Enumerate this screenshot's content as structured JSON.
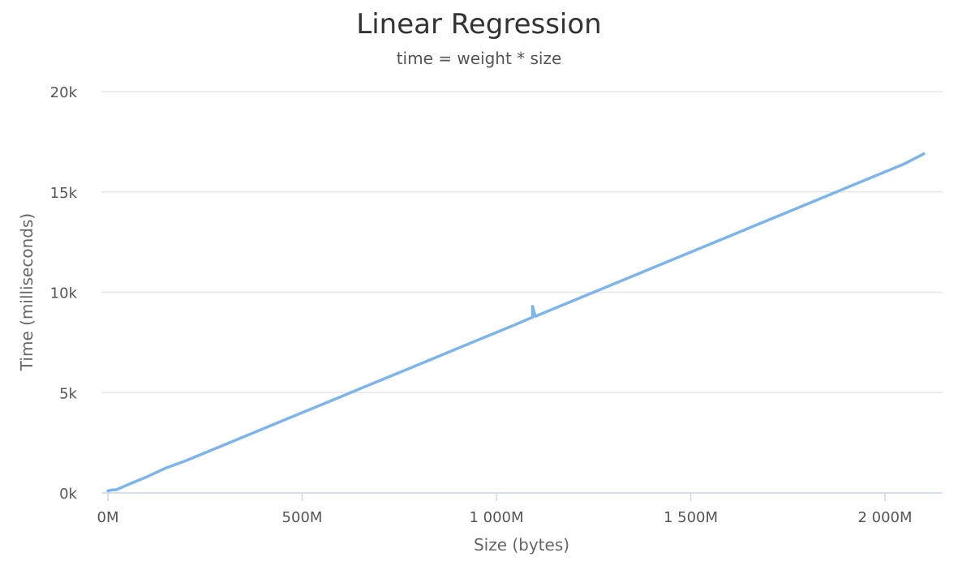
{
  "chart_data": {
    "type": "line",
    "title": "Linear Regression",
    "subtitle": "time = weight * size",
    "xlabel": "Size (bytes)",
    "ylabel": "Time (milliseconds)",
    "xlim": [
      0,
      2120
    ],
    "ylim": [
      0,
      20000
    ],
    "x_ticks": [
      {
        "value": 0,
        "label": "0M"
      },
      {
        "value": 500,
        "label": "500M"
      },
      {
        "value": 1000,
        "label": "1 000M"
      },
      {
        "value": 1500,
        "label": "1 500M"
      },
      {
        "value": 2000,
        "label": "2 000M"
      }
    ],
    "y_ticks": [
      {
        "value": 0,
        "label": "0k"
      },
      {
        "value": 5000,
        "label": "5k"
      },
      {
        "value": 10000,
        "label": "10k"
      },
      {
        "value": 15000,
        "label": "15k"
      },
      {
        "value": 20000,
        "label": "20k"
      }
    ],
    "grid": true,
    "line_color": "#7cb5ec",
    "series": [
      {
        "x": [
          0,
          10,
          20,
          60,
          100,
          150,
          200,
          250,
          300,
          350,
          400,
          450,
          500,
          550,
          600,
          650,
          700,
          750,
          800,
          850,
          900,
          950,
          1000,
          1050,
          1080,
          1093,
          1093,
          1100,
          1150,
          1200,
          1250,
          1300,
          1350,
          1400,
          1450,
          1500,
          1550,
          1600,
          1650,
          1700,
          1750,
          1800,
          1850,
          1900,
          1950,
          2000,
          2050,
          2100
        ],
        "y": [
          100,
          150,
          150,
          480,
          800,
          1250,
          1600,
          2000,
          2400,
          2800,
          3200,
          3600,
          4000,
          4400,
          4800,
          5200,
          5600,
          6000,
          6400,
          6800,
          7200,
          7600,
          8000,
          8400,
          8650,
          8750,
          9300,
          8800,
          9200,
          9600,
          10000,
          10400,
          10800,
          11200,
          11600,
          12000,
          12400,
          12800,
          13200,
          13600,
          14000,
          14400,
          14800,
          15200,
          15600,
          16000,
          16400,
          16900
        ]
      }
    ]
  }
}
